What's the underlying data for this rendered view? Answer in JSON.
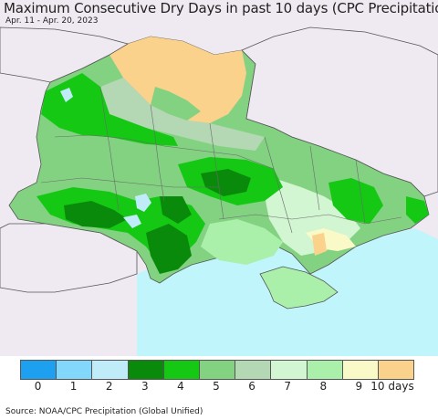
{
  "title": "Maximum Consecutive Dry Days in past 10 days (CPC Precipitation)",
  "date_range": "Apr. 11 - Apr. 20, 2023",
  "source": "Source: NOAA/CPC Precipitation (Global Unified)",
  "legend": {
    "colors": [
      "#1ea0f0",
      "#82d7fa",
      "#c0ecfa",
      "#0a8a0a",
      "#14c814",
      "#82d282",
      "#b4d7b4",
      "#d2f5d2",
      "#aaf0aa",
      "#fafac8",
      "#fad28c"
    ],
    "labels": [
      "0",
      "1",
      "2",
      "3",
      "4",
      "5",
      "6",
      "7",
      "8",
      "9"
    ],
    "unit_label": "10 days"
  },
  "colors": {
    "sea": "#bff5fb",
    "outside": "#efeaf1",
    "border": "#555555"
  }
}
